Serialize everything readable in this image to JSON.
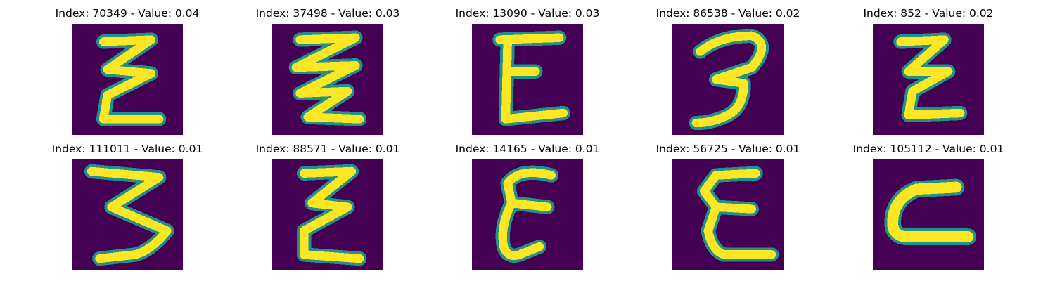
{
  "colors": {
    "background": "#440154",
    "edge": "#21918c",
    "stroke": "#fde725"
  },
  "panels": [
    {
      "title": "Index: 70349 - Value: 0.04",
      "glyph": "E-zig"
    },
    {
      "title": "Index: 37498 - Value: 0.03",
      "glyph": "E-zigzag"
    },
    {
      "title": "Index: 13090 - Value: 0.03",
      "glyph": "E-block"
    },
    {
      "title": "Index: 86538 - Value: 0.02",
      "glyph": "3"
    },
    {
      "title": "Index: 852 - Value: 0.02",
      "glyph": "E-zig-small"
    },
    {
      "title": "Index: 111011 - Value: 0.01",
      "glyph": "3-wide"
    },
    {
      "title": "Index: 88571 - Value: 0.01",
      "glyph": "E-zig-2"
    },
    {
      "title": "Index: 14165 - Value: 0.01",
      "glyph": "E-curvy"
    },
    {
      "title": "Index: 56725 - Value: 0.01",
      "glyph": "E-round"
    },
    {
      "title": "Index: 105112 - Value: 0.01",
      "glyph": "C-flat"
    }
  ]
}
